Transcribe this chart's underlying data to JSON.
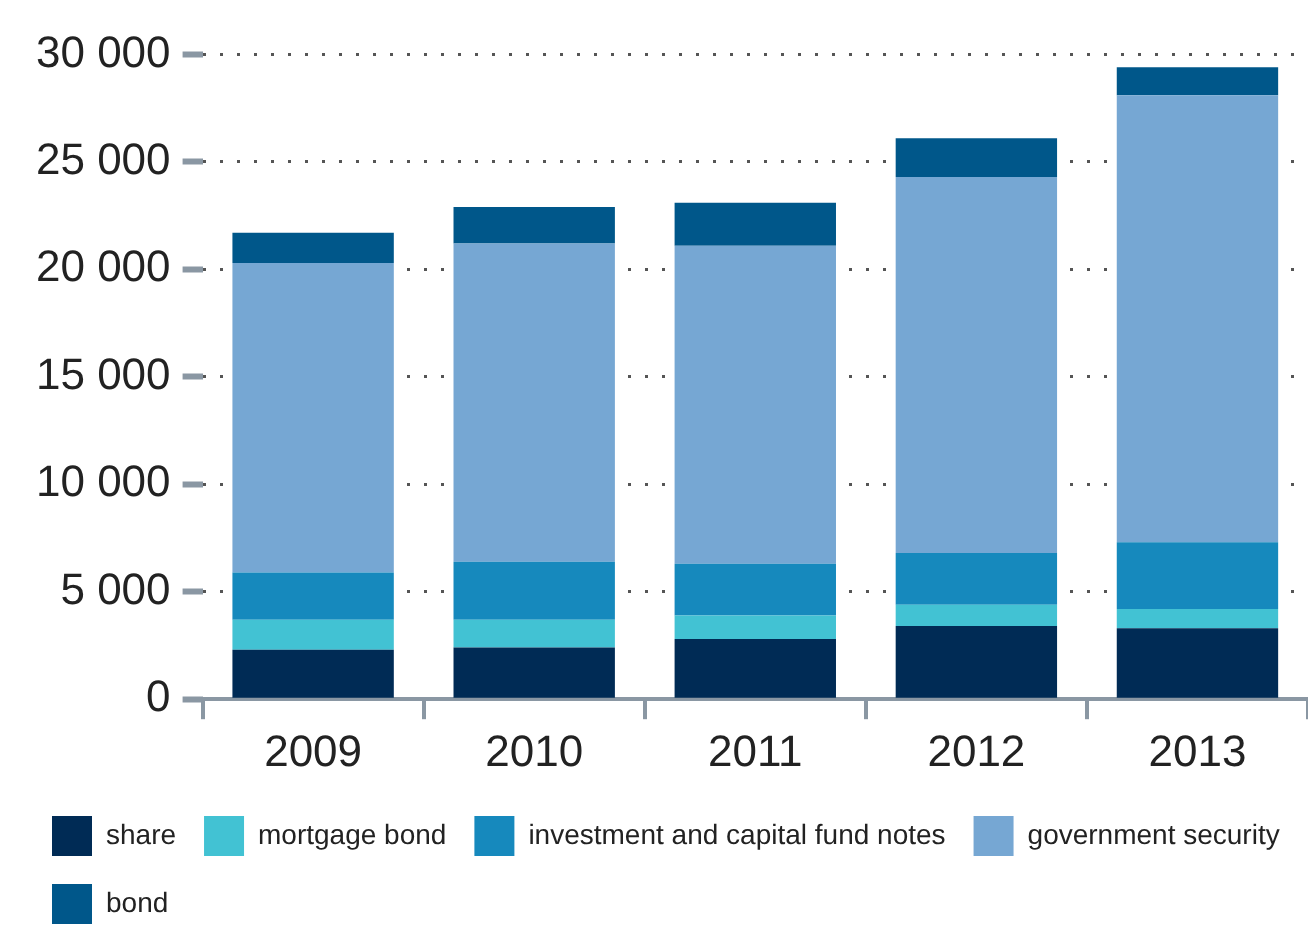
{
  "chart_data": {
    "type": "bar",
    "stacked": true,
    "categories": [
      "2009",
      "2010",
      "2011",
      "2012",
      "2013"
    ],
    "series": [
      {
        "name": "share",
        "color": "#002b55",
        "values": [
          2300,
          2400,
          2800,
          3400,
          3300
        ]
      },
      {
        "name": "mortgage bond",
        "color": "#42c2d3",
        "values": [
          1400,
          1300,
          1100,
          1000,
          900
        ]
      },
      {
        "name": "investment and capital fund notes",
        "color": "#1689bd",
        "values": [
          2200,
          2700,
          2400,
          2400,
          3100
        ]
      },
      {
        "name": "government security",
        "color": "#76a7d3",
        "values": [
          14400,
          14800,
          14800,
          17500,
          20800
        ]
      },
      {
        "name": "bond",
        "color": "#00578a",
        "values": [
          1400,
          1700,
          2000,
          1800,
          1300
        ]
      }
    ],
    "ylim": [
      0,
      30000
    ],
    "yticks": [
      {
        "value": 0,
        "label": "0"
      },
      {
        "value": 5000,
        "label": "5 000"
      },
      {
        "value": 10000,
        "label": "10 000"
      },
      {
        "value": 15000,
        "label": "15 000"
      },
      {
        "value": 20000,
        "label": "20 000"
      },
      {
        "value": 25000,
        "label": "25 000"
      },
      {
        "value": 30000,
        "label": "30 000"
      }
    ],
    "grid": "y",
    "legend": "bottom"
  }
}
